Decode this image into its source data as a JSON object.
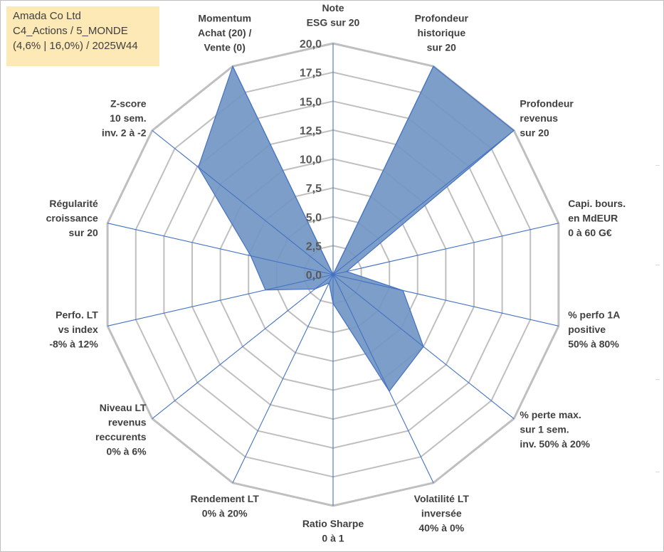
{
  "header": {
    "line1": "Amada Co Ltd",
    "line2": "C4_Actions / 5_MONDE",
    "line3": "(4,6% | 16,0%) / 2025W44"
  },
  "chart_data": {
    "type": "radar",
    "rmax": 20,
    "ticks": [
      "0,0",
      "2,5",
      "5,0",
      "7,5",
      "10,0",
      "12,5",
      "15,0",
      "17,5",
      "20,0"
    ],
    "tick_values": [
      0,
      2.5,
      5,
      7.5,
      10,
      12.5,
      15,
      17.5,
      20
    ],
    "axes": [
      {
        "label": [
          "Note",
          "ESG sur 20"
        ],
        "value": 0
      },
      {
        "label": [
          "Profondeur",
          "historique",
          "sur 20"
        ],
        "value": 20
      },
      {
        "label": [
          "Profondeur",
          "revenus",
          "sur 20"
        ],
        "value": 20
      },
      {
        "label": [
          "Capi. bours.",
          "en MdEUR",
          "0 à 60 G€"
        ],
        "value": 1.2
      },
      {
        "label": [
          "% perfo 1A",
          "positive",
          "50% à 80%"
        ],
        "value": 6.2
      },
      {
        "label": [
          "% perte max.",
          "sur 1 sem.",
          "inv. 50% à 20%"
        ],
        "value": 10.0
      },
      {
        "label": [
          "Volatilité LT",
          "inversée",
          "40% à 0%"
        ],
        "value": 11.2
      },
      {
        "label": [
          "Ratio Sharpe",
          "0 à 1"
        ],
        "value": 2.5
      },
      {
        "label": [
          "Rendement LT",
          "0% à 20%"
        ],
        "value": 0.8
      },
      {
        "label": [
          "Niveau LT",
          "revenus",
          "reccurents",
          "0% à 6%"
        ],
        "value": 2.0
      },
      {
        "label": [
          "Perfo. LT",
          "vs index",
          "-8% à 12%"
        ],
        "value": 6.0
      },
      {
        "label": [
          "Régularité",
          "croissance",
          "sur 20"
        ],
        "value": 7.3
      },
      {
        "label": [
          "Z-score",
          "10 sem.",
          "inv. 2 à -2"
        ],
        "value": 14.9
      },
      {
        "label": [
          "Momentum",
          "Achat (20) /",
          "Vente (0)"
        ],
        "value": 20
      }
    ],
    "colors": {
      "fill": "#7196c3",
      "stroke": "#4472c4",
      "grid": "#bfbfbf",
      "title_bg": "#fde9b6"
    }
  }
}
